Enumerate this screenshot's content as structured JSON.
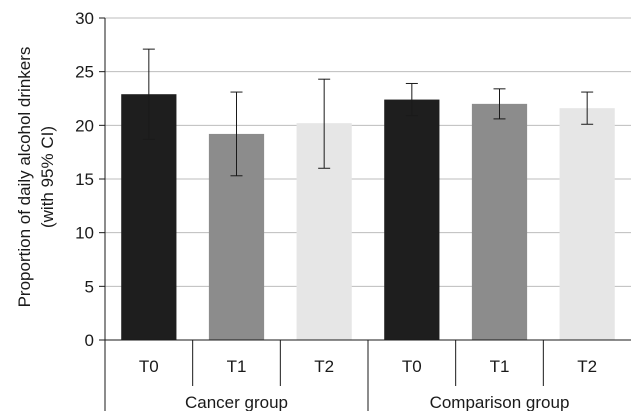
{
  "chart_data": {
    "type": "bar",
    "ylabel_lines": [
      "Proportion of daily alcohol drinkers",
      "(with 95% CI)"
    ],
    "ylim": [
      0,
      30
    ],
    "yticks": [
      "0",
      "5",
      "10",
      "15",
      "20",
      "25",
      "30"
    ],
    "grid": true,
    "groups": [
      {
        "label": "Cancer group",
        "categories": [
          "T0",
          "T1",
          "T2"
        ],
        "values": [
          22.9,
          19.2,
          20.2
        ],
        "ci_low": [
          18.7,
          15.3,
          16.0
        ],
        "ci_high": [
          27.1,
          23.1,
          24.3
        ]
      },
      {
        "label": "Comparison group",
        "categories": [
          "T0",
          "T1",
          "T2"
        ],
        "values": [
          22.4,
          22.0,
          21.6
        ],
        "ci_low": [
          20.9,
          20.6,
          20.1
        ],
        "ci_high": [
          23.9,
          23.4,
          23.1
        ]
      }
    ],
    "bar_colors": [
      "#1e1e1e",
      "#8c8c8c",
      "#e6e6e6"
    ]
  }
}
